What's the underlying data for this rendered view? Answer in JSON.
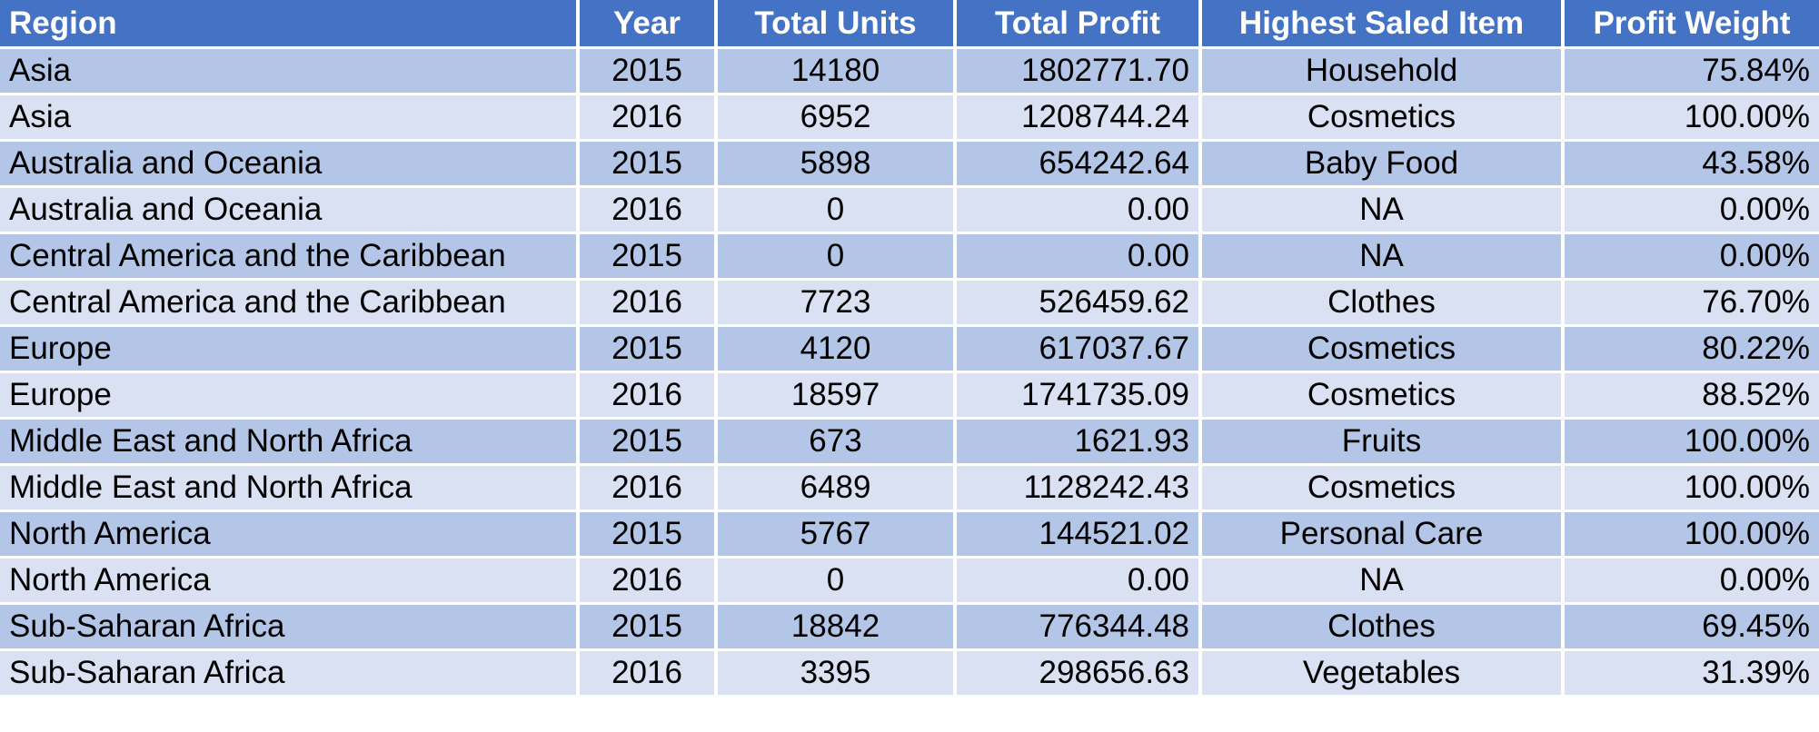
{
  "table": {
    "headers": [
      "Region",
      "Year",
      "Total Units",
      "Total Profit",
      "Highest Saled Item",
      "Profit Weight"
    ],
    "rows": [
      [
        "Asia",
        "2015",
        "14180",
        "1802771.70",
        "Household",
        "75.84%"
      ],
      [
        "Asia",
        "2016",
        "6952",
        "1208744.24",
        "Cosmetics",
        "100.00%"
      ],
      [
        "Australia and Oceania",
        "2015",
        "5898",
        "654242.64",
        "Baby Food",
        "43.58%"
      ],
      [
        "Australia and Oceania",
        "2016",
        "0",
        "0.00",
        "NA",
        "0.00%"
      ],
      [
        "Central America and the Caribbean",
        "2015",
        "0",
        "0.00",
        "NA",
        "0.00%"
      ],
      [
        "Central America and the Caribbean",
        "2016",
        "7723",
        "526459.62",
        "Clothes",
        "76.70%"
      ],
      [
        "Europe",
        "2015",
        "4120",
        "617037.67",
        "Cosmetics",
        "80.22%"
      ],
      [
        "Europe",
        "2016",
        "18597",
        "1741735.09",
        "Cosmetics",
        "88.52%"
      ],
      [
        "Middle East and North Africa",
        "2015",
        "673",
        "1621.93",
        "Fruits",
        "100.00%"
      ],
      [
        "Middle East and North Africa",
        "2016",
        "6489",
        "1128242.43",
        "Cosmetics",
        "100.00%"
      ],
      [
        "North America",
        "2015",
        "5767",
        "144521.02",
        "Personal Care",
        "100.00%"
      ],
      [
        "North America",
        "2016",
        "0",
        "0.00",
        "NA",
        "0.00%"
      ],
      [
        "Sub-Saharan Africa",
        "2015",
        "18842",
        "776344.48",
        "Clothes",
        "69.45%"
      ],
      [
        "Sub-Saharan Africa",
        "2016",
        "3395",
        "298656.63",
        "Vegetables",
        "31.39%"
      ]
    ]
  },
  "colors": {
    "header_bg": "#4472c4",
    "row_band_dark": "#b4c6e7",
    "row_band_light": "#d9e1f2",
    "header_text": "#ffffff",
    "cell_text": "#000000"
  }
}
